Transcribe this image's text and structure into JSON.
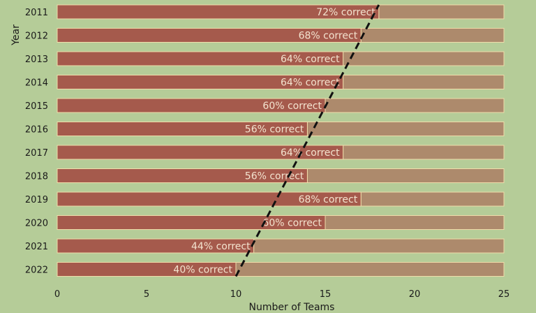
{
  "chart_data": {
    "type": "bar",
    "orientation": "horizontal",
    "stacked": true,
    "xlabel": "Number of Teams",
    "ylabel": "Year",
    "xlim": [
      0,
      25
    ],
    "xticks": [
      0,
      5,
      10,
      15,
      20,
      25
    ],
    "total": 25,
    "categories": [
      "2011",
      "2012",
      "2013",
      "2014",
      "2015",
      "2016",
      "2017",
      "2018",
      "2019",
      "2020",
      "2021",
      "2022"
    ],
    "correct": [
      18,
      17,
      16,
      16,
      15,
      14,
      16,
      14,
      17,
      15,
      11,
      10
    ],
    "labels": [
      "72% correct",
      "68% correct",
      "64% correct",
      "64% correct",
      "60% correct",
      "56% correct",
      "64% correct",
      "56% correct",
      "68% correct",
      "60% correct",
      "44% correct",
      "40% correct"
    ],
    "trend_line": {
      "from": {
        "year": "2022",
        "x": 10
      },
      "to": {
        "year": "2011",
        "x": 18
      }
    },
    "colors": {
      "background": "#b5cc98",
      "correct": "#a55a4c",
      "remainder": "#ad8a6c",
      "bar_edge": "#f0dcaa",
      "label": "#f3e3cf",
      "trend": "#111111"
    }
  }
}
